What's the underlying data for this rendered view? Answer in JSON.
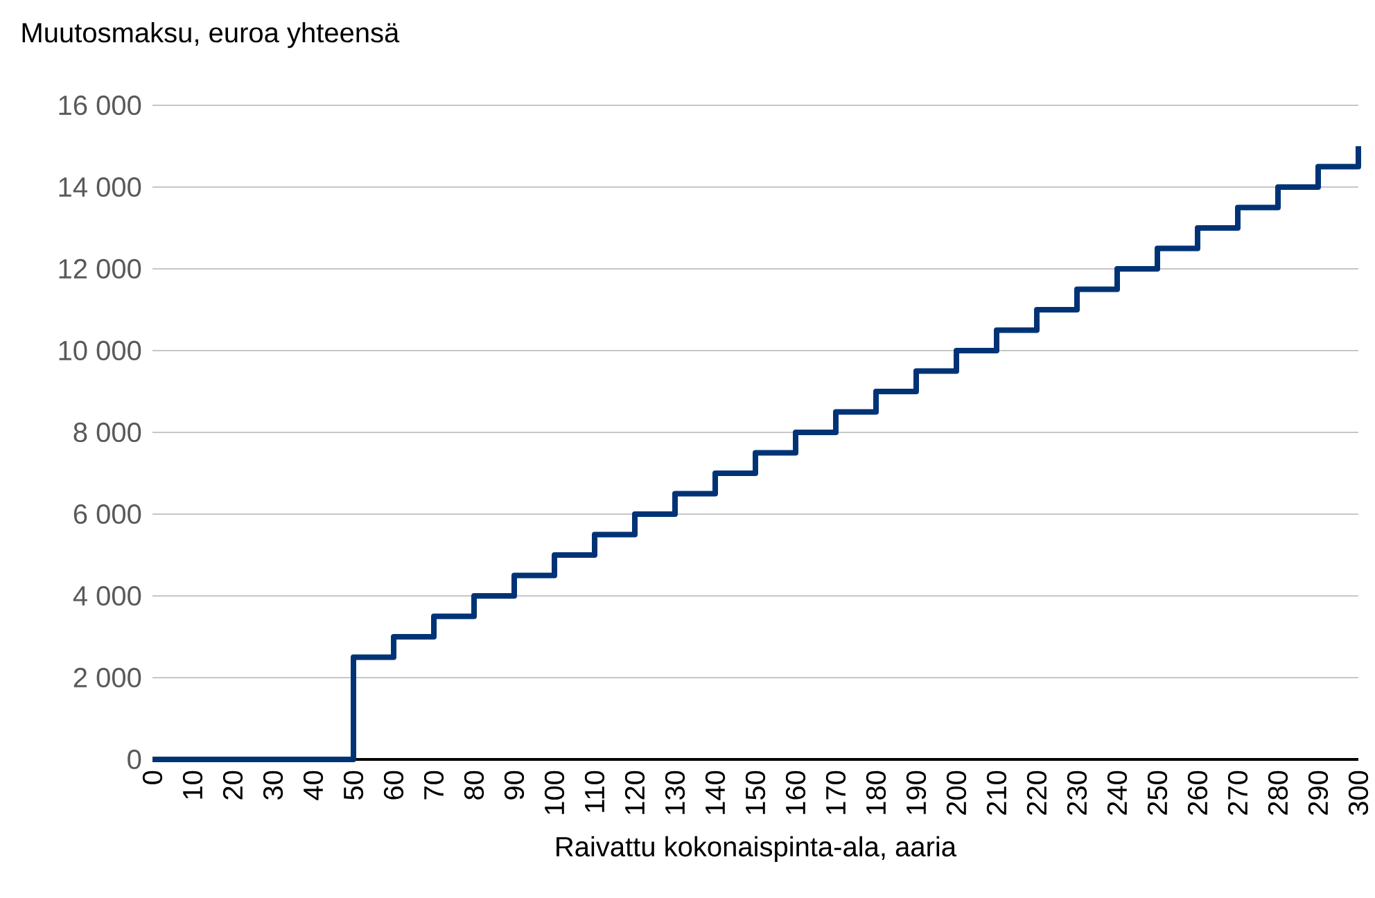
{
  "chart_data": {
    "type": "step",
    "xlabel": "Raivattu kokonaispinta-ala, aaria",
    "ylabel": "Muutosmaksu, euroa yhteensä",
    "color": "#003375",
    "grid": "y",
    "x": [
      0,
      10,
      20,
      30,
      40,
      50,
      60,
      70,
      80,
      90,
      100,
      110,
      120,
      130,
      140,
      150,
      160,
      170,
      180,
      190,
      200,
      210,
      220,
      230,
      240,
      250,
      260,
      270,
      280,
      290,
      300
    ],
    "values": [
      0,
      0,
      0,
      0,
      0,
      2500,
      3000,
      3500,
      4000,
      4500,
      5000,
      5500,
      6000,
      6500,
      7000,
      7500,
      8000,
      8500,
      9000,
      9500,
      10000,
      10500,
      11000,
      11500,
      12000,
      12500,
      13000,
      13500,
      14000,
      14500,
      15000
    ],
    "xlim": [
      0,
      300
    ],
    "ylim": [
      0,
      16000
    ],
    "xticks": [
      0,
      10,
      20,
      30,
      40,
      50,
      60,
      70,
      80,
      90,
      100,
      110,
      120,
      130,
      140,
      150,
      160,
      170,
      180,
      190,
      200,
      210,
      220,
      230,
      240,
      250,
      260,
      270,
      280,
      290,
      300
    ],
    "yticks": [
      0,
      {
        "value": 2000,
        "label": "2 000"
      },
      {
        "value": 4000,
        "label": "4 000"
      },
      {
        "value": 6000,
        "label": "6 000"
      },
      {
        "value": 8000,
        "label": "8 000"
      },
      {
        "value": 10000,
        "label": "10 000"
      },
      {
        "value": 12000,
        "label": "12 000"
      },
      {
        "value": 14000,
        "label": "14 000"
      },
      {
        "value": 16000,
        "label": "16 000"
      }
    ]
  }
}
